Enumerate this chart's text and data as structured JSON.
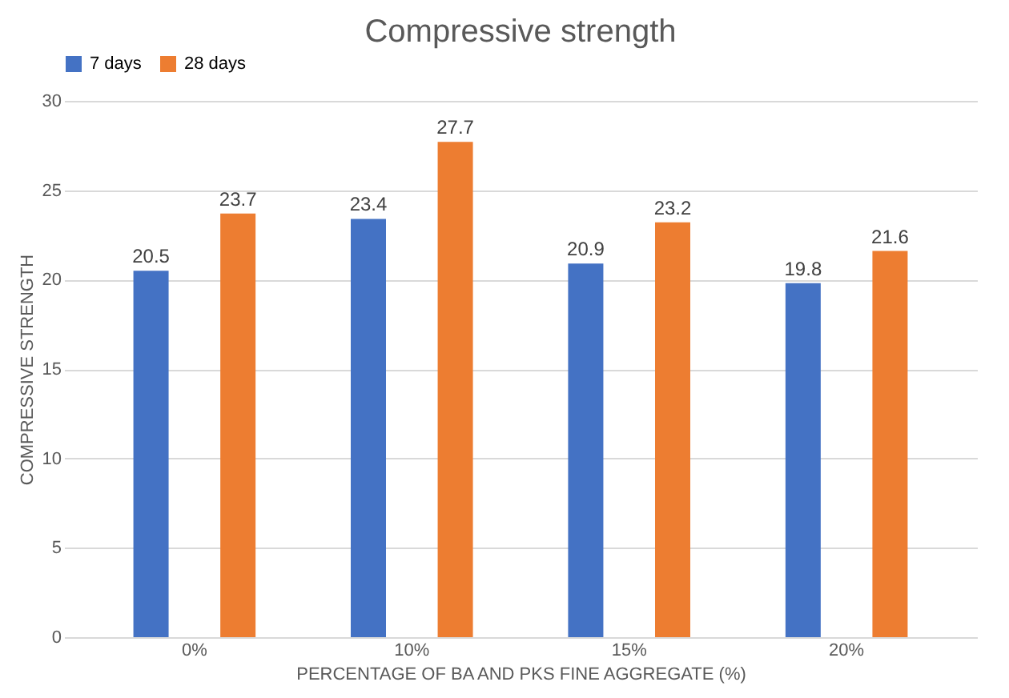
{
  "chart_data": {
    "type": "bar",
    "title": "Compressive strength",
    "xlabel": "PERCENTAGE OF BA AND PKS FINE AGGREGATE (%)",
    "ylabel": "COMPRESSIVE STRENGTH",
    "categories": [
      "0%",
      "10%",
      "15%",
      "20%"
    ],
    "series": [
      {
        "name": "7 days",
        "color": "#4472c4",
        "values": [
          20.5,
          23.4,
          20.9,
          19.8
        ]
      },
      {
        "name": "28 days",
        "color": "#ed7d31",
        "values": [
          23.7,
          27.7,
          23.2,
          21.6
        ]
      }
    ],
    "ylim": [
      0,
      30
    ],
    "yticks": [
      0,
      5,
      10,
      15,
      20,
      25,
      30
    ],
    "grid": "y",
    "legend": "top",
    "data_labels": true
  }
}
